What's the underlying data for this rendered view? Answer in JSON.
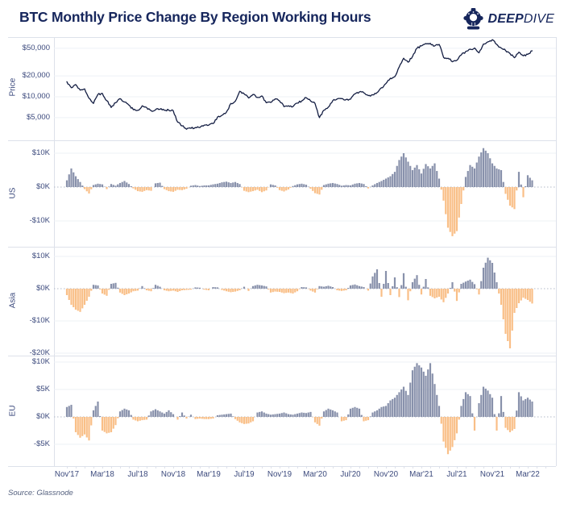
{
  "header": {
    "title": "BTC Monthly Price Change By Region Working Hours",
    "logo": {
      "icon": "diver-helmet-icon",
      "brand_bold": "DEEP",
      "brand_light": "DIVE"
    }
  },
  "footer": {
    "source": "Source: Glassnode"
  },
  "colors": {
    "navy": "#16265c",
    "price_line": "#131d42",
    "bar_positive": "#8891ab",
    "bar_negative": "#f9bf87",
    "axis_text": "#3c4a7d",
    "grid": "#eef0f6",
    "zero_line": "#b3bac8",
    "border": "#dde1ea"
  },
  "x_axis": {
    "tick_labels": [
      "Nov'17",
      "Mar'18",
      "Jul'18",
      "Nov'18",
      "Mar'19",
      "Jul'19",
      "Nov'19",
      "Mar'20",
      "Jul'20",
      "Nov'20",
      "Mar'21",
      "Jul'21",
      "Nov'21",
      "Mar'22"
    ],
    "tick_interval_months": 4,
    "minor_tick_months": 1
  },
  "chart_data": [
    {
      "type": "line",
      "name": "BTC Price",
      "panel_label": "Price",
      "y_scale": "log",
      "unit": "$K",
      "x_start": "Nov'17",
      "x_step_months": 0.5,
      "y_ticks": [
        {
          "label": "$50,000",
          "value": 50
        },
        {
          "label": "$20,000",
          "value": 20
        },
        {
          "label": "$10,000",
          "value": 10
        },
        {
          "label": "$5,000",
          "value": 5
        }
      ],
      "values": [
        16.5,
        13.5,
        15.0,
        12.5,
        13.0,
        9.5,
        8.0,
        10.8,
        11.2,
        8.8,
        7.0,
        8.2,
        9.4,
        8.4,
        7.6,
        6.5,
        6.4,
        7.4,
        7.0,
        6.3,
        6.5,
        6.6,
        6.4,
        6.4,
        6.3,
        4.3,
        3.8,
        3.4,
        3.5,
        3.6,
        3.6,
        3.9,
        3.9,
        4.1,
        5.1,
        5.4,
        6.0,
        8.0,
        8.6,
        12.0,
        11.0,
        9.6,
        10.8,
        9.8,
        10.3,
        8.2,
        8.3,
        9.3,
        8.7,
        7.2,
        7.4,
        7.2,
        8.1,
        8.7,
        9.7,
        8.7,
        8.0,
        5.0,
        6.4,
        7.1,
        8.8,
        9.3,
        9.4,
        9.1,
        9.2,
        11.0,
        11.7,
        11.4,
        10.4,
        10.7,
        11.5,
        13.5,
        15.5,
        18.5,
        19.5,
        27.0,
        36.0,
        31.5,
        38.0,
        50.0,
        54.0,
        58.5,
        59.0,
        54.0,
        57.0,
        37.0,
        36.0,
        32.0,
        33.5,
        40.0,
        45.0,
        48.5,
        50.5,
        43.0,
        57.5,
        62.0,
        66.5,
        57.0,
        50.5,
        46.5,
        42.0,
        36.5,
        44.0,
        39.0,
        41.0,
        46.0
      ]
    },
    {
      "type": "bar",
      "name": "US working hours monthly price change",
      "panel_label": "US",
      "unit": "$K",
      "x_start": "Nov'17",
      "x_step_months": 0.5,
      "y_ticks": [
        {
          "label": "$10K",
          "value": 10
        },
        {
          "label": "$0K",
          "value": 0
        },
        {
          "label": "-$10K",
          "value": -10
        }
      ],
      "values": [
        2.0,
        5.5,
        3.2,
        1.5,
        -0.6,
        -1.9,
        0.6,
        1.0,
        0.8,
        -0.6,
        0.9,
        0.4,
        1.2,
        1.8,
        0.9,
        -0.4,
        -1.2,
        -1.4,
        -0.9,
        -1.1,
        1.1,
        1.3,
        -0.6,
        -1.2,
        -1.4,
        -0.8,
        -0.9,
        -0.5,
        0.4,
        0.6,
        0.3,
        0.5,
        0.5,
        0.8,
        1.0,
        1.4,
        1.6,
        1.2,
        1.5,
        0.9,
        -1.1,
        -1.5,
        -1.2,
        -0.8,
        -1.5,
        -1.0,
        0.8,
        0.5,
        -0.9,
        -1.3,
        -0.7,
        0.3,
        0.8,
        1.0,
        0.7,
        -0.5,
        -1.8,
        -2.2,
        0.6,
        1.0,
        1.2,
        0.9,
        0.4,
        0.6,
        0.5,
        1.0,
        1.2,
        0.9,
        -0.4,
        0.5,
        1.2,
        1.8,
        2.5,
        3.2,
        4.5,
        8.0,
        10.0,
        7.5,
        5.0,
        6.5,
        4.0,
        6.8,
        5.5,
        7.0,
        2.5,
        -4.0,
        -12.0,
        -14.5,
        -13.0,
        -5.0,
        3.0,
        6.5,
        5.5,
        9.0,
        11.5,
        10.0,
        7.0,
        5.5,
        5.0,
        -2.0,
        -5.5,
        -6.5,
        4.5,
        -3.0,
        3.5,
        2.0
      ]
    },
    {
      "type": "bar",
      "name": "Asia working hours monthly price change",
      "panel_label": "Asia",
      "unit": "$K",
      "x_start": "Nov'17",
      "x_step_months": 0.5,
      "y_ticks": [
        {
          "label": "$10K",
          "value": 10
        },
        {
          "label": "$0K",
          "value": 0
        },
        {
          "label": "-$10K",
          "value": -10
        },
        {
          "label": "-$20K",
          "value": -20
        }
      ],
      "values": [
        -2.0,
        -5.0,
        -6.5,
        -7.2,
        -5.0,
        -2.5,
        1.2,
        1.0,
        -1.5,
        -2.2,
        1.5,
        1.8,
        -1.2,
        -2.0,
        -1.5,
        -0.8,
        -0.6,
        0.8,
        -0.5,
        -0.8,
        1.2,
        0.6,
        -0.5,
        -0.8,
        -0.6,
        -1.0,
        -0.5,
        -0.4,
        -0.3,
        0.4,
        0.3,
        -0.3,
        -0.5,
        0.5,
        0.4,
        -0.4,
        -0.8,
        -1.1,
        -0.9,
        -0.5,
        0.6,
        -0.7,
        0.8,
        1.2,
        1.0,
        0.7,
        -1.2,
        -0.9,
        -1.0,
        -1.4,
        -1.2,
        -1.5,
        -0.8,
        0.5,
        0.4,
        -0.6,
        -1.2,
        0.8,
        0.6,
        0.9,
        0.5,
        -0.5,
        -0.7,
        -0.5,
        1.0,
        1.3,
        0.8,
        0.5,
        -0.6,
        3.8,
        6.0,
        -2.5,
        5.5,
        -2.0,
        3.5,
        -2.6,
        4.8,
        -3.6,
        2.0,
        4.2,
        -1.8,
        3.0,
        -2.2,
        -3.0,
        -2.5,
        -4.2,
        -1.5,
        2.0,
        -3.8,
        1.5,
        2.2,
        2.8,
        1.4,
        -1.8,
        6.5,
        9.6,
        8.0,
        2.0,
        -5.0,
        -14.0,
        -18.5,
        -7.5,
        -4.5,
        -2.8,
        -3.5,
        -4.6
      ]
    },
    {
      "type": "bar",
      "name": "EU working hours monthly price change",
      "panel_label": "EU",
      "unit": "$K",
      "x_start": "Nov'17",
      "x_step_months": 0.5,
      "y_ticks": [
        {
          "label": "$10K",
          "value": 10
        },
        {
          "label": "$5K",
          "value": 5
        },
        {
          "label": "$0K",
          "value": 0
        },
        {
          "label": "-$5K",
          "value": -5
        }
      ],
      "values": [
        1.8,
        2.2,
        -2.8,
        -3.8,
        -3.2,
        -4.3,
        1.2,
        2.8,
        -2.5,
        -3.0,
        -2.8,
        -1.5,
        1.0,
        1.5,
        1.2,
        -0.5,
        -0.8,
        -0.6,
        -0.5,
        1.0,
        1.4,
        1.0,
        0.6,
        1.2,
        0.5,
        -0.5,
        0.8,
        -0.3,
        0.4,
        -0.4,
        -0.3,
        -0.4,
        -0.4,
        -0.3,
        0.3,
        0.4,
        0.5,
        0.6,
        -0.4,
        -1.0,
        -1.3,
        -1.2,
        -0.8,
        0.8,
        1.0,
        0.6,
        0.4,
        0.5,
        0.6,
        0.8,
        0.5,
        0.4,
        0.6,
        0.8,
        0.7,
        0.9,
        -1.0,
        -1.6,
        1.0,
        1.5,
        1.2,
        0.8,
        -0.8,
        -0.6,
        1.5,
        1.8,
        1.5,
        -0.8,
        -0.6,
        0.8,
        1.2,
        1.8,
        2.0,
        3.0,
        3.5,
        4.5,
        5.5,
        4.0,
        8.5,
        9.8,
        9.0,
        7.5,
        9.8,
        6.0,
        2.0,
        -4.5,
        -6.8,
        -5.5,
        -3.0,
        2.0,
        4.5,
        3.8,
        -2.5,
        2.5,
        5.5,
        4.8,
        3.5,
        -2.5,
        3.8,
        -2.0,
        -2.8,
        -2.2,
        4.5,
        3.0,
        3.5,
        2.8
      ]
    }
  ]
}
